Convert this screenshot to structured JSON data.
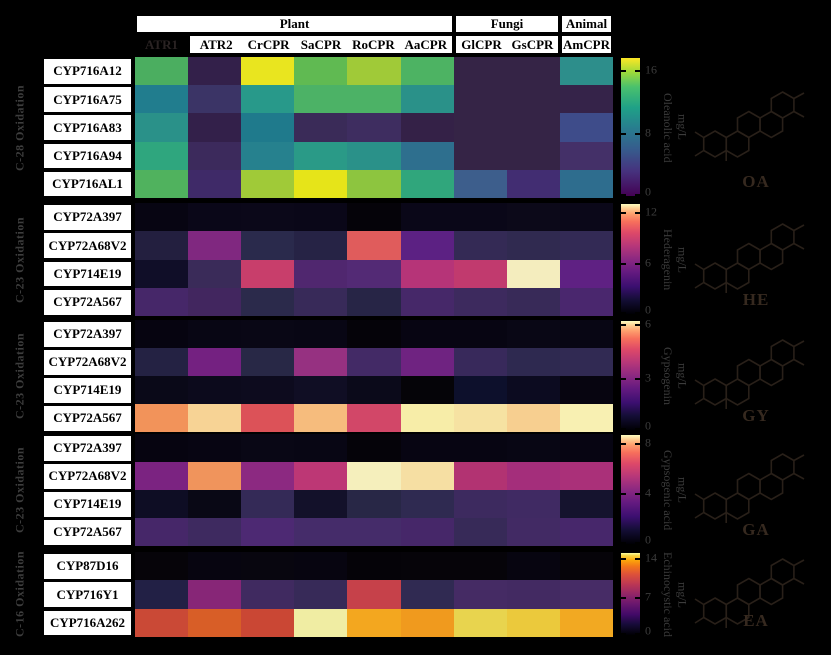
{
  "chart_data": {
    "type": "heatmap",
    "title": "",
    "unit": "mg/L",
    "columns": [
      "ATR1",
      "ATR2",
      "CrCPR",
      "SaCPR",
      "RoCPR",
      "AaCPR",
      "GlCPR",
      "GsCPR",
      "AmCPR"
    ],
    "masked_column": "ATR1",
    "column_groups": [
      {
        "label": "Plant",
        "span": 6
      },
      {
        "label": "Fungi",
        "span": 2
      },
      {
        "label": "Animal",
        "span": 1
      }
    ],
    "legend_position": "right-of-each-block",
    "grid": "off",
    "blocks": [
      {
        "pathway_label": "C-28 Oxidation",
        "compound": "Oleanolic acid",
        "abbreviation": "OA",
        "unit": "mg/L",
        "colormap": "viridis",
        "vmin": 0,
        "vmax": 16,
        "colorbar_ticks": [
          {
            "label": "16",
            "pos": 0.086
          },
          {
            "label": "8",
            "pos": 0.54
          },
          {
            "label": "0",
            "pos": 1.0
          }
        ],
        "rows": [
          "CYP716A12",
          "CYP716A75",
          "CYP716A83",
          "CYP716A94",
          "CYP716AL1"
        ],
        "values": [
          [
            11,
            0.5,
            15.5,
            11.5,
            13,
            11,
            0.5,
            0.5,
            7
          ],
          [
            6,
            1.5,
            7.5,
            11,
            11,
            7.5,
            0.5,
            0.5,
            1
          ],
          [
            7.5,
            0.5,
            6.5,
            1.5,
            2,
            0.7,
            0.5,
            0.5,
            3.5
          ],
          [
            9,
            1.5,
            6.5,
            8,
            7.5,
            5.5,
            0.5,
            0.5,
            2
          ],
          [
            11.5,
            2,
            13,
            15,
            12.5,
            9.5,
            4,
            2.5,
            5.5
          ]
        ],
        "cell_colors": [
          [
            "#4bae60",
            "#33204a",
            "#e9e51f",
            "#60ba52",
            "#a0ca38",
            "#4db363",
            "#352446",
            "#352446",
            "#2d8e8b"
          ],
          [
            "#217d8e",
            "#3b3466",
            "#28998a",
            "#4cb266",
            "#4cb266",
            "#2a9189",
            "#352446",
            "#352446",
            "#352349"
          ],
          [
            "#2a9189",
            "#33204a",
            "#1f7a8c",
            "#3a2b58",
            "#3e2d60",
            "#342147",
            "#352446",
            "#352446",
            "#3e4c8a"
          ],
          [
            "#2fa67e",
            "#3c2a5c",
            "#26818e",
            "#2a9a87",
            "#2a9189",
            "#2e6f8e",
            "#352446",
            "#352446",
            "#443068"
          ],
          [
            "#50b25e",
            "#3f2a68",
            "#a0ca38",
            "#e6e419",
            "#8dc53f",
            "#30a67c",
            "#3d5e8c",
            "#422d72",
            "#2e6d8e"
          ]
        ]
      },
      {
        "pathway_label": "C-23 Oxidation",
        "compound": "Hederagenin",
        "abbreviation": "HE",
        "unit": "mg/L",
        "colormap": "magma",
        "vmin": 0,
        "vmax": 12,
        "colorbar_ticks": [
          {
            "label": "12",
            "pos": 0.077
          },
          {
            "label": "6",
            "pos": 0.538
          },
          {
            "label": "0",
            "pos": 1.0
          }
        ],
        "rows": [
          "CYP72A397",
          "CYP72A68V2",
          "CYP714E19",
          "CYP72A567"
        ],
        "values": [
          [
            0.3,
            0.4,
            0.4,
            0.4,
            0.2,
            0.4,
            0.4,
            0.5,
            0.4
          ],
          [
            1.6,
            4.2,
            1.9,
            1.8,
            7.8,
            3.4,
            2.1,
            1.9,
            2.1
          ],
          [
            1,
            2.4,
            6.6,
            3.1,
            3.2,
            6,
            6.4,
            11.6,
            3.6
          ],
          [
            2.8,
            2.6,
            1.7,
            2.2,
            1.5,
            2.8,
            2.4,
            2.2,
            2.9
          ]
        ],
        "cell_colors": [
          [
            "#070512",
            "#0a0718",
            "#0b0819",
            "#0a0718",
            "#050309",
            "#0a0718",
            "#0a0718",
            "#0c0919",
            "#0b0819"
          ],
          [
            "#231f3f",
            "#802880",
            "#2a2a4c",
            "#262345",
            "#e05c5c",
            "#5c2183",
            "#342a55",
            "#302a50",
            "#332a55"
          ],
          [
            "#100e28",
            "#3a2b59",
            "#c83e6b",
            "#50276f",
            "#532a75",
            "#b63478",
            "#c13a6e",
            "#f4edbe",
            "#5f2183"
          ],
          [
            "#462769",
            "#42265f",
            "#2b2a4b",
            "#382a59",
            "#272546",
            "#462869",
            "#3d2a5e",
            "#382a58",
            "#4a276e"
          ]
        ]
      },
      {
        "pathway_label": "C-23 Oxidation",
        "compound": "Gypsogenin",
        "abbreviation": "GY",
        "unit": "mg/L",
        "colormap": "magma",
        "vmin": 0,
        "vmax": 6,
        "colorbar_ticks": [
          {
            "label": "6",
            "pos": 0.03
          },
          {
            "label": "3",
            "pos": 0.52
          },
          {
            "label": "0",
            "pos": 1.0
          }
        ],
        "rows": [
          "CYP72A397",
          "CYP72A68V2",
          "CYP714E19",
          "CYP72A567"
        ],
        "values": [
          [
            0.1,
            0.1,
            0.1,
            0.1,
            0.1,
            0.1,
            0.1,
            0.1,
            0.1
          ],
          [
            0.9,
            1.9,
            1,
            2.4,
            1.5,
            1.9,
            1.3,
            1,
            1.1
          ],
          [
            0.3,
            0.35,
            0.4,
            0.45,
            0.35,
            0.15,
            0.5,
            0.4,
            0.2
          ],
          [
            4.7,
            5.4,
            4.1,
            5.1,
            3.5,
            5.8,
            5.6,
            5.3,
            5.8
          ]
        ],
        "cell_colors": [
          [
            "#060410",
            "#080614",
            "#090715",
            "#080614",
            "#050309",
            "#070512",
            "#070512",
            "#090715",
            "#080614"
          ],
          [
            "#242243",
            "#742181",
            "#282846",
            "#963181",
            "#432a66",
            "#6f2381",
            "#38295b",
            "#2e2950",
            "#312a53"
          ],
          [
            "#0a0918",
            "#0c0a1c",
            "#0d0b1e",
            "#100e24",
            "#0b0a1a",
            "#050408",
            "#0d102c",
            "#0c0b20",
            "#070510"
          ],
          [
            "#f2935a",
            "#f7d395",
            "#dc5258",
            "#f6bc7d",
            "#d24768",
            "#f7eda8",
            "#f6e2a2",
            "#f7cf90",
            "#f8f0b2"
          ]
        ]
      },
      {
        "pathway_label": "C-23 Oxidation",
        "compound": "Gypsogenic acid",
        "abbreviation": "GA",
        "unit": "mg/L",
        "colormap": "magma",
        "vmin": 0,
        "vmax": 8,
        "colorbar_ticks": [
          {
            "label": "8",
            "pos": 0.07
          },
          {
            "label": "4",
            "pos": 0.53
          },
          {
            "label": "0",
            "pos": 1.0
          }
        ],
        "rows": [
          "CYP72A397",
          "CYP72A68V2",
          "CYP714E19",
          "CYP72A567"
        ],
        "values": [
          [
            0.1,
            0.1,
            0.1,
            0.1,
            0.1,
            0.1,
            0.1,
            0.1,
            0.1
          ],
          [
            2.7,
            6.2,
            3,
            4.2,
            7.7,
            7.1,
            3.8,
            3.4,
            3.6
          ],
          [
            0.6,
            0.4,
            1.6,
            0.7,
            1.2,
            1.4,
            1.8,
            1.8,
            0.8
          ],
          [
            2.2,
            1.8,
            2.3,
            2.1,
            2.1,
            2.2,
            1.7,
            2,
            2.2
          ]
        ],
        "cell_colors": [
          [
            "#060410",
            "#070512",
            "#090715",
            "#080614",
            "#050309",
            "#070512",
            "#070512",
            "#080614",
            "#070512"
          ],
          [
            "#7b2381",
            "#f0945c",
            "#8c2981",
            "#bd3775",
            "#f5efbc",
            "#f6dfa3",
            "#b23372",
            "#a42e7b",
            "#aa3079"
          ],
          [
            "#0e0d24",
            "#090815",
            "#342a57",
            "#13112a",
            "#282746",
            "#2f2a51",
            "#3d2a5f",
            "#402a63",
            "#15132e"
          ],
          [
            "#462769",
            "#3e2a60",
            "#4d2973",
            "#452c6a",
            "#452c6a",
            "#462769",
            "#372a58",
            "#422a64",
            "#47276b"
          ]
        ]
      },
      {
        "pathway_label": "C-16 Oxidation",
        "compound": "Echinocystic acid",
        "abbreviation": "EA",
        "unit": "mg/L",
        "colormap": "inferno",
        "vmin": 0,
        "vmax": 14,
        "colorbar_ticks": [
          {
            "label": "14",
            "pos": 0.067
          },
          {
            "label": "7",
            "pos": 0.533
          },
          {
            "label": "0",
            "pos": 1.0
          }
        ],
        "rows": [
          "CYP87D16",
          "CYP716Y1",
          "CYP716A262"
        ],
        "values": [
          [
            0.2,
            0.2,
            0.2,
            0.2,
            0.2,
            0.2,
            0.2,
            0.2,
            0.2
          ],
          [
            1.7,
            5.3,
            3.1,
            2.7,
            8,
            2.4,
            3.2,
            3.1,
            3.4
          ],
          [
            9.1,
            9.8,
            9.1,
            13.7,
            11.2,
            10.9,
            12.6,
            12.2,
            11.3
          ]
        ],
        "cell_colors": [
          [
            "#060409",
            "#070510",
            "#08060f",
            "#070510",
            "#050308",
            "#060409",
            "#060409",
            "#070510",
            "#060409"
          ],
          [
            "#222045",
            "#872677",
            "#402a60",
            "#372a58",
            "#c6414a",
            "#302a52",
            "#452b64",
            "#432a62",
            "#472c66"
          ],
          [
            "#ca4936",
            "#d85e27",
            "#ca4734",
            "#f0eda3",
            "#f3a71f",
            "#f09a1e",
            "#e8d44e",
            "#ebc93c",
            "#f2a922"
          ]
        ]
      }
    ]
  }
}
